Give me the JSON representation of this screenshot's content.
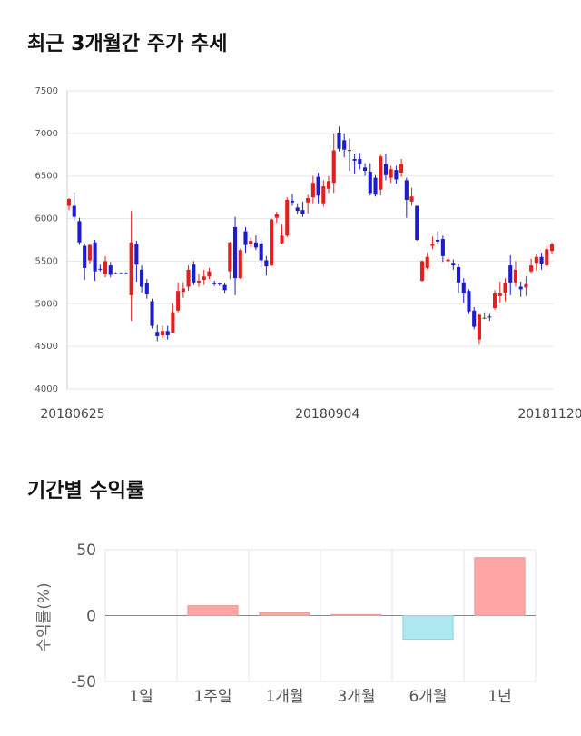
{
  "sections": {
    "price_title": "최근 3개월간 주가 추세",
    "returns_title": "기간별 수익률"
  },
  "colors": {
    "up": "#e0201e",
    "down": "#1c1ccc",
    "bar_positive": "#ffa5a5",
    "bar_negative": "#ade8f0"
  },
  "chart_data": [
    {
      "type": "candlestick",
      "title": "최근 3개월간 주가 추세",
      "ylim": [
        4000,
        7500
      ],
      "yticks": [
        "7500",
        "7000",
        "6500",
        "6000",
        "5500",
        "5000",
        "4500",
        "4000"
      ],
      "xticks": [
        "20180625",
        "20180904",
        "20181120"
      ],
      "grid": true,
      "candles": [
        {
          "o": 6150,
          "c": 6230,
          "h": 6240,
          "l": 6100
        },
        {
          "o": 6150,
          "c": 6020,
          "h": 6310,
          "l": 5970
        },
        {
          "o": 5970,
          "c": 5720,
          "h": 6010,
          "l": 5690
        },
        {
          "o": 5680,
          "c": 5420,
          "h": 5710,
          "l": 5280
        },
        {
          "o": 5510,
          "c": 5690,
          "h": 5700,
          "l": 5470
        },
        {
          "o": 5720,
          "c": 5380,
          "h": 5750,
          "l": 5270
        },
        {
          "o": 5410,
          "c": 5400,
          "h": 5460,
          "l": 5380
        },
        {
          "o": 5350,
          "c": 5500,
          "h": 5560,
          "l": 5310
        },
        {
          "o": 5450,
          "c": 5340,
          "h": 5490,
          "l": 5310
        },
        {
          "o": 5360,
          "c": 5350,
          "h": 5370,
          "l": 5350
        },
        {
          "o": 5360,
          "c": 5350,
          "h": 5370,
          "l": 5350
        },
        {
          "o": 5360,
          "c": 5350,
          "h": 5370,
          "l": 5350
        },
        {
          "o": 5100,
          "c": 5720,
          "h": 6090,
          "l": 4800
        },
        {
          "o": 5700,
          "c": 5460,
          "h": 5740,
          "l": 5260
        },
        {
          "o": 5400,
          "c": 5200,
          "h": 5450,
          "l": 5130
        },
        {
          "o": 5240,
          "c": 5110,
          "h": 5290,
          "l": 5060
        },
        {
          "o": 5030,
          "c": 4740,
          "h": 5060,
          "l": 4710
        },
        {
          "o": 4670,
          "c": 4620,
          "h": 4750,
          "l": 4560
        },
        {
          "o": 4630,
          "c": 4680,
          "h": 4740,
          "l": 4600
        },
        {
          "o": 4680,
          "c": 4630,
          "h": 4740,
          "l": 4580
        },
        {
          "o": 4660,
          "c": 4900,
          "h": 5000,
          "l": 4660
        },
        {
          "o": 4920,
          "c": 5150,
          "h": 5250,
          "l": 4900
        },
        {
          "o": 5140,
          "c": 5180,
          "h": 5250,
          "l": 5070
        },
        {
          "o": 5200,
          "c": 5400,
          "h": 5450,
          "l": 5150
        },
        {
          "o": 5460,
          "c": 5250,
          "h": 5500,
          "l": 5220
        },
        {
          "o": 5250,
          "c": 5270,
          "h": 5350,
          "l": 5200
        },
        {
          "o": 5280,
          "c": 5320,
          "h": 5400,
          "l": 5220
        },
        {
          "o": 5320,
          "c": 5380,
          "h": 5420,
          "l": 5290
        },
        {
          "o": 5240,
          "c": 5230,
          "h": 5270,
          "l": 5210
        },
        {
          "o": 5240,
          "c": 5230,
          "h": 5250,
          "l": 5210
        },
        {
          "o": 5220,
          "c": 5160,
          "h": 5250,
          "l": 5120
        },
        {
          "o": 5380,
          "c": 5720,
          "h": 5730,
          "l": 5290
        },
        {
          "o": 5900,
          "c": 5300,
          "h": 6020,
          "l": 5100
        },
        {
          "o": 5300,
          "c": 5630,
          "h": 5650,
          "l": 5290
        },
        {
          "o": 5850,
          "c": 5690,
          "h": 5900,
          "l": 5600
        },
        {
          "o": 5700,
          "c": 5740,
          "h": 5780,
          "l": 5660
        },
        {
          "o": 5720,
          "c": 5660,
          "h": 5800,
          "l": 5630
        },
        {
          "o": 5710,
          "c": 5510,
          "h": 5760,
          "l": 5430
        },
        {
          "o": 5510,
          "c": 5440,
          "h": 5560,
          "l": 5330
        },
        {
          "o": 5450,
          "c": 5990,
          "h": 6000,
          "l": 5440
        },
        {
          "o": 6010,
          "c": 6050,
          "h": 6080,
          "l": 5950
        },
        {
          "o": 5710,
          "c": 5800,
          "h": 5930,
          "l": 5700
        },
        {
          "o": 5800,
          "c": 6220,
          "h": 6250,
          "l": 5780
        },
        {
          "o": 6210,
          "c": 6190,
          "h": 6290,
          "l": 6150
        },
        {
          "o": 6130,
          "c": 6090,
          "h": 6180,
          "l": 6050
        },
        {
          "o": 6100,
          "c": 6050,
          "h": 6200,
          "l": 6020
        },
        {
          "o": 6190,
          "c": 6240,
          "h": 6280,
          "l": 6060
        },
        {
          "o": 6250,
          "c": 6420,
          "h": 6500,
          "l": 6180
        },
        {
          "o": 6490,
          "c": 6270,
          "h": 6540,
          "l": 6180
        },
        {
          "o": 6180,
          "c": 6380,
          "h": 6450,
          "l": 6140
        },
        {
          "o": 6350,
          "c": 6440,
          "h": 6500,
          "l": 6300
        },
        {
          "o": 6420,
          "c": 6800,
          "h": 7000,
          "l": 6300
        },
        {
          "o": 7010,
          "c": 6820,
          "h": 7080,
          "l": 6790
        },
        {
          "o": 6920,
          "c": 6810,
          "h": 7000,
          "l": 6720
        },
        {
          "o": 6800,
          "c": 6800,
          "h": 6940,
          "l": 6560
        },
        {
          "o": 6700,
          "c": 6680,
          "h": 6760,
          "l": 6520
        },
        {
          "o": 6700,
          "c": 6640,
          "h": 6770,
          "l": 6580
        },
        {
          "o": 6600,
          "c": 6560,
          "h": 6650,
          "l": 6500
        },
        {
          "o": 6550,
          "c": 6300,
          "h": 6650,
          "l": 6270
        },
        {
          "o": 6480,
          "c": 6280,
          "h": 6510,
          "l": 6260
        },
        {
          "o": 6340,
          "c": 6730,
          "h": 6750,
          "l": 6270
        },
        {
          "o": 6640,
          "c": 6510,
          "h": 6760,
          "l": 6450
        },
        {
          "o": 6480,
          "c": 6580,
          "h": 6620,
          "l": 6420
        },
        {
          "o": 6570,
          "c": 6460,
          "h": 6620,
          "l": 6410
        },
        {
          "o": 6540,
          "c": 6640,
          "h": 6700,
          "l": 6490
        },
        {
          "o": 6450,
          "c": 6220,
          "h": 6480,
          "l": 6010
        },
        {
          "o": 6200,
          "c": 6260,
          "h": 6360,
          "l": 6150
        },
        {
          "o": 6150,
          "c": 5750,
          "h": 6150,
          "l": 5740
        },
        {
          "o": 5270,
          "c": 5500,
          "h": 5510,
          "l": 5260
        },
        {
          "o": 5420,
          "c": 5550,
          "h": 5600,
          "l": 5400
        },
        {
          "o": 5680,
          "c": 5700,
          "h": 5790,
          "l": 5640
        },
        {
          "o": 5750,
          "c": 5730,
          "h": 5850,
          "l": 5700
        },
        {
          "o": 5760,
          "c": 5560,
          "h": 5800,
          "l": 5490
        },
        {
          "o": 5500,
          "c": 5520,
          "h": 5580,
          "l": 5410
        },
        {
          "o": 5480,
          "c": 5450,
          "h": 5520,
          "l": 5400
        },
        {
          "o": 5430,
          "c": 5250,
          "h": 5470,
          "l": 5130
        },
        {
          "o": 5250,
          "c": 5120,
          "h": 5300,
          "l": 5010
        },
        {
          "o": 5150,
          "c": 4910,
          "h": 5170,
          "l": 4880
        },
        {
          "o": 4920,
          "c": 4730,
          "h": 4960,
          "l": 4700
        },
        {
          "o": 4580,
          "c": 4870,
          "h": 4880,
          "l": 4520
        },
        {
          "o": 4830,
          "c": 4830,
          "h": 4900,
          "l": 4820
        },
        {
          "o": 4850,
          "c": 4840,
          "h": 4880,
          "l": 4800
        },
        {
          "o": 4950,
          "c": 5120,
          "h": 5160,
          "l": 4930
        },
        {
          "o": 5090,
          "c": 5120,
          "h": 5260,
          "l": 5010
        },
        {
          "o": 5130,
          "c": 5240,
          "h": 5300,
          "l": 5030
        },
        {
          "o": 5450,
          "c": 5250,
          "h": 5570,
          "l": 5100
        },
        {
          "o": 5250,
          "c": 5400,
          "h": 5500,
          "l": 5200
        },
        {
          "o": 5200,
          "c": 5170,
          "h": 5260,
          "l": 5080
        },
        {
          "o": 5190,
          "c": 5230,
          "h": 5320,
          "l": 5090
        },
        {
          "o": 5380,
          "c": 5450,
          "h": 5530,
          "l": 5360
        },
        {
          "o": 5480,
          "c": 5550,
          "h": 5580,
          "l": 5390
        },
        {
          "o": 5550,
          "c": 5470,
          "h": 5600,
          "l": 5400
        },
        {
          "o": 5450,
          "c": 5640,
          "h": 5680,
          "l": 5430
        },
        {
          "o": 5620,
          "c": 5700,
          "h": 5720,
          "l": 5580
        }
      ]
    },
    {
      "type": "bar",
      "title": "기간별 수익률",
      "categories": [
        "1일",
        "1주일",
        "1개월",
        "3개월",
        "6개월",
        "1년"
      ],
      "values": [
        0,
        7.5,
        2,
        0.8,
        -18,
        44
      ],
      "ylabel": "수익률(%)",
      "ylim": [
        -50,
        50
      ],
      "yticks": [
        "50",
        "0",
        "-50"
      ],
      "grid": true
    }
  ]
}
